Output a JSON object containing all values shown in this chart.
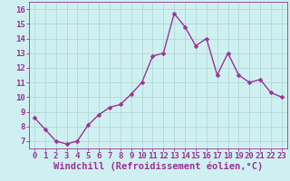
{
  "x": [
    0,
    1,
    2,
    3,
    4,
    5,
    6,
    7,
    8,
    9,
    10,
    11,
    12,
    13,
    14,
    15,
    16,
    17,
    18,
    19,
    20,
    21,
    22,
    23
  ],
  "y": [
    8.6,
    7.8,
    7.0,
    6.8,
    7.0,
    8.1,
    8.8,
    9.3,
    9.5,
    10.2,
    11.0,
    12.8,
    13.0,
    15.7,
    14.8,
    13.5,
    14.0,
    11.5,
    13.0,
    11.5,
    11.0,
    11.2,
    10.3,
    10.0
  ],
  "line_color": "#993399",
  "marker": "D",
  "marker_size": 2.5,
  "linewidth": 1.0,
  "xlabel": "Windchill (Refroidissement éolien,°C)",
  "xlabel_fontsize": 7.5,
  "bg_color": "#cff0f0",
  "grid_color": "#b0d8d8",
  "ylim": [
    6.5,
    16.5
  ],
  "xlim": [
    -0.5,
    23.5
  ],
  "yticks": [
    7,
    8,
    9,
    10,
    11,
    12,
    13,
    14,
    15,
    16
  ],
  "xticks": [
    0,
    1,
    2,
    3,
    4,
    5,
    6,
    7,
    8,
    9,
    10,
    11,
    12,
    13,
    14,
    15,
    16,
    17,
    18,
    19,
    20,
    21,
    22,
    23
  ],
  "tick_fontsize": 6.5,
  "tick_color": "#993399",
  "label_color": "#993399",
  "spine_color": "#993399"
}
